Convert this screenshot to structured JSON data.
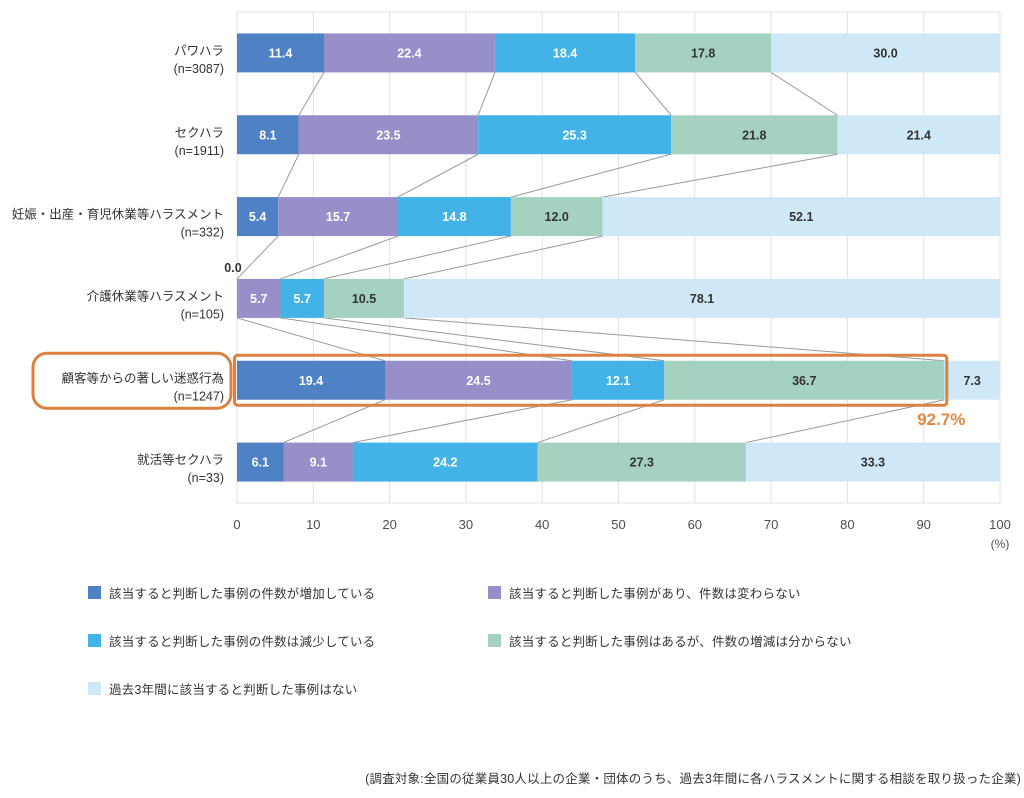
{
  "chart_data": {
    "type": "bar",
    "stacked": true,
    "orientation": "horizontal",
    "title": "",
    "xlabel": "",
    "ylabel": "",
    "xlim": [
      0,
      100
    ],
    "x_ticks": [
      0,
      10,
      20,
      30,
      40,
      50,
      60,
      70,
      80,
      90,
      100
    ],
    "x_unit": "(%)",
    "grid": "vertical",
    "legend_position": "bottom",
    "categories": [
      {
        "label": "パワハラ",
        "n": "(n=3087)"
      },
      {
        "label": "セクハラ",
        "n": "(n=1911)"
      },
      {
        "label": "妊娠・出産・育児休業等ハラスメント",
        "n": "(n=332)"
      },
      {
        "label": "介護休業等ハラスメント",
        "n": "(n=105)"
      },
      {
        "label": "顧客等からの著しい迷惑行為",
        "n": "(n=1247)"
      },
      {
        "label": "就活等セクハラ",
        "n": "(n=33)"
      }
    ],
    "series": [
      {
        "name": "該当すると判断した事例の件数が増加している",
        "color": "#4e82c4",
        "values": [
          11.4,
          8.1,
          5.4,
          0.0,
          19.4,
          6.1
        ]
      },
      {
        "name": "該当すると判断した事例があり、件数は変わらない",
        "color": "#968fc8",
        "values": [
          22.4,
          23.5,
          15.7,
          5.7,
          24.5,
          9.1
        ]
      },
      {
        "name": "該当すると判断した事例の件数は減少している",
        "color": "#43b3e7",
        "values": [
          18.4,
          25.3,
          14.8,
          5.7,
          12.1,
          24.2
        ]
      },
      {
        "name": "該当すると判断した事例はあるが、件数の増減は分からない",
        "color": "#a5d2c0",
        "values": [
          17.8,
          21.8,
          12.0,
          10.5,
          36.7,
          27.3
        ]
      },
      {
        "name": "過去3年間に該当すると判断した事例はない",
        "color": "#cfe8f8",
        "values": [
          30.0,
          21.4,
          52.1,
          78.1,
          7.3,
          33.3
        ]
      }
    ],
    "highlight": {
      "row_index": 4,
      "through_segment": 3,
      "total_label": "92.7%",
      "box_color": "#dd8140",
      "text_color": "#e5883f"
    },
    "colors": {
      "grid": "#e0e0e0",
      "connector": "#999999",
      "label_dark": "#333333",
      "label_light": "#ffffff",
      "axis_text": "#4d4d4d"
    },
    "footnote": "(調査対象:全国の従業員30人以上の企業・団体のうち、過去3年間に各ハラスメントに関する相談を取り扱った企業)"
  }
}
